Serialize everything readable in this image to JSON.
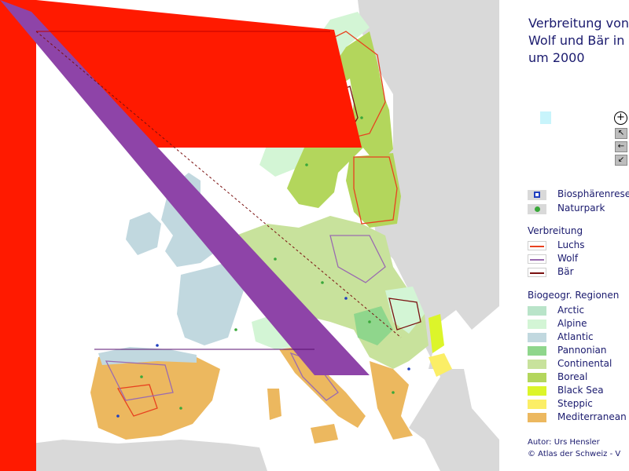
{
  "title": {
    "line1": "Verbreitung von",
    "line2": "Wolf und Bär in",
    "line3": "um 2000"
  },
  "tools": {
    "zoom_in_icon": "zoom-in-icon",
    "select_icon": "select-arrow-icon",
    "pan_left_icon": "pan-left-icon",
    "pan_down_left_icon": "pan-down-left-icon"
  },
  "legend_sites": [
    {
      "label": "Biosphärenreservat",
      "color": "#1f3fbf",
      "kind": "square-dot"
    },
    {
      "label": "Naturpark",
      "color": "#3aa83a",
      "kind": "dot"
    }
  ],
  "legend_distribution": {
    "heading": "Verbreitung",
    "items": [
      {
        "label": "Luchs",
        "color": "#e8411f"
      },
      {
        "label": "Wolf",
        "color": "#9a6bb0"
      },
      {
        "label": "Bär",
        "color": "#7a1010"
      }
    ]
  },
  "legend_regions": {
    "heading": "Biogeogr. Regionen",
    "items": [
      {
        "label": "Arctic",
        "color": "#b9e4c9"
      },
      {
        "label": "Alpine",
        "color": "#d3f5d5"
      },
      {
        "label": "Atlantic",
        "color": "#c1d8df"
      },
      {
        "label": "Pannonian",
        "color": "#8fd68c"
      },
      {
        "label": "Continental",
        "color": "#c8e29c"
      },
      {
        "label": "Boreal",
        "color": "#b3d65c"
      },
      {
        "label": "Black Sea",
        "color": "#dcf52a"
      },
      {
        "label": "Steppic",
        "color": "#fbee66"
      },
      {
        "label": "Mediterranean",
        "color": "#ecb85f"
      }
    ]
  },
  "footer": {
    "author": "Autor: Urs Hensler",
    "copyright": "© Atlas der Schweiz - V"
  },
  "colors": {
    "outside_land": "#d9d9d9",
    "sea": "#ffffff",
    "overlay_red": "#ff1a00",
    "overlay_purple": "#8e44a8",
    "site_blue": "#1f3fbf",
    "site_green": "#3aa83a"
  }
}
